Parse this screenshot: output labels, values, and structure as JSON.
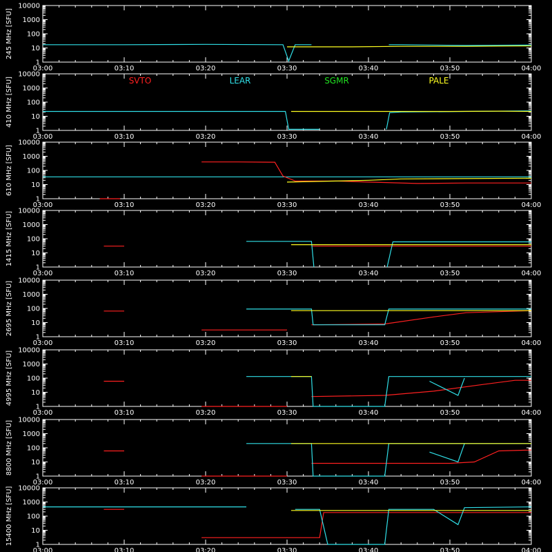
{
  "colors": {
    "background": "#000000",
    "axes": "#ffffff",
    "SVTO": "#ff2020",
    "LEAR": "#30e0e8",
    "SGMR": "#20e020",
    "PALE": "#ffff20"
  },
  "legend": {
    "placement": "top",
    "entries": [
      "SVTO",
      "LEAR",
      "SGMR",
      "PALE"
    ]
  },
  "chart_data": [
    {
      "type": "line",
      "log_y": true,
      "ylabel": "245 MHz [SFU]",
      "ylim": [
        1,
        10000
      ],
      "xlim": [
        "03:00",
        "04:00"
      ],
      "x_ticks": [
        "03:00",
        "03:10",
        "03:20",
        "03:30",
        "03:40",
        "03:50",
        "04:00"
      ],
      "y_ticks": [
        "1",
        "10",
        "100",
        "1000",
        "10000"
      ],
      "series": [
        {
          "name": "LEAR",
          "points": [
            [
              0,
              17
            ],
            [
              10,
              17
            ],
            [
              20,
              18
            ],
            [
              29.5,
              17
            ],
            [
              30.2,
              1.2
            ],
            [
              31,
              17
            ],
            [
              33,
              17
            ]
          ]
        },
        {
          "name": "LEAR",
          "points": [
            [
              42.5,
              17
            ],
            [
              44,
              17
            ],
            [
              52,
              15
            ],
            [
              60,
              16
            ]
          ]
        },
        {
          "name": "PALE",
          "points": [
            [
              30,
              12
            ],
            [
              38,
              12
            ],
            [
              44,
              13
            ],
            [
              52,
              13
            ],
            [
              60,
              14
            ]
          ]
        }
      ]
    },
    {
      "type": "line",
      "log_y": true,
      "ylabel": "410 MHz [SFU]",
      "ylim": [
        1,
        10000
      ],
      "xlim": [
        "03:00",
        "04:00"
      ],
      "x_ticks": [
        "03:00",
        "03:10",
        "03:20",
        "03:30",
        "03:40",
        "03:50",
        "04:00"
      ],
      "y_ticks": [
        "1",
        "10",
        "100",
        "1000",
        "10000"
      ],
      "series": [
        {
          "name": "LEAR",
          "points": [
            [
              0,
              22
            ],
            [
              10,
              22
            ],
            [
              20,
              22
            ],
            [
              29.8,
              22
            ],
            [
              30.2,
              1.2
            ],
            [
              34,
              1.2
            ]
          ]
        },
        {
          "name": "LEAR",
          "points": [
            [
              42.2,
              1.2
            ],
            [
              42.6,
              18
            ],
            [
              44,
              20
            ],
            [
              52,
              22
            ],
            [
              60,
              24
            ]
          ]
        },
        {
          "name": "PALE",
          "points": [
            [
              30.5,
              22
            ],
            [
              40,
              22
            ],
            [
              50,
              22
            ],
            [
              56,
              23
            ],
            [
              60,
              22
            ]
          ]
        }
      ]
    },
    {
      "type": "line",
      "log_y": true,
      "ylabel": "610 MHz [SFU]",
      "ylim": [
        1,
        10000
      ],
      "xlim": [
        "03:00",
        "04:00"
      ],
      "x_ticks": [
        "03:00",
        "03:10",
        "03:20",
        "03:30",
        "03:40",
        "03:50",
        "04:00"
      ],
      "y_ticks": [
        "1",
        "10",
        "100",
        "1000",
        "10000"
      ],
      "series": [
        {
          "name": "LEAR",
          "points": [
            [
              0,
              35
            ],
            [
              10,
              35
            ],
            [
              20,
              35
            ],
            [
              30,
              35
            ],
            [
              40,
              35
            ],
            [
              50,
              35
            ],
            [
              60,
              35
            ]
          ]
        },
        {
          "name": "SVTO",
          "points": [
            [
              7,
              1
            ],
            [
              9.5,
              1
            ]
          ]
        },
        {
          "name": "SVTO",
          "points": [
            [
              19.5,
              400
            ],
            [
              24,
              400
            ],
            [
              28.5,
              380
            ],
            [
              29.5,
              40
            ],
            [
              31,
              18
            ],
            [
              36,
              18
            ],
            [
              40,
              15
            ],
            [
              46,
              12
            ],
            [
              52,
              13
            ],
            [
              60,
              13
            ]
          ]
        },
        {
          "name": "PALE",
          "points": [
            [
              30,
              15
            ],
            [
              40,
              20
            ],
            [
              44,
              25
            ],
            [
              60,
              28
            ]
          ]
        }
      ]
    },
    {
      "type": "line",
      "log_y": true,
      "ylabel": "1415 MHz [SFU]",
      "ylim": [
        1,
        10000
      ],
      "xlim": [
        "03:00",
        "04:00"
      ],
      "x_ticks": [
        "03:00",
        "03:10",
        "03:20",
        "03:30",
        "03:40",
        "03:50",
        "04:00"
      ],
      "y_ticks": [
        "1",
        "10",
        "100",
        "1000",
        "10000"
      ],
      "series": [
        {
          "name": "SVTO",
          "points": [
            [
              7.5,
              30
            ],
            [
              10,
              30
            ]
          ]
        },
        {
          "name": "SVTO",
          "points": [
            [
              33,
              30
            ],
            [
              40,
              30
            ],
            [
              50,
              30
            ],
            [
              60,
              30
            ]
          ]
        },
        {
          "name": "LEAR",
          "points": [
            [
              25,
              65
            ],
            [
              33,
              65
            ],
            [
              33.3,
              1
            ]
          ]
        },
        {
          "name": "LEAR",
          "points": [
            [
              42.3,
              1
            ],
            [
              43,
              60
            ],
            [
              48,
              60
            ],
            [
              60,
              60
            ]
          ]
        },
        {
          "name": "PALE",
          "points": [
            [
              30.5,
              38
            ],
            [
              40,
              38
            ],
            [
              50,
              38
            ],
            [
              60,
              38
            ]
          ]
        }
      ]
    },
    {
      "type": "line",
      "log_y": true,
      "ylabel": "2695 MHz [SFU]",
      "ylim": [
        1,
        10000
      ],
      "xlim": [
        "03:00",
        "04:00"
      ],
      "x_ticks": [
        "03:00",
        "03:10",
        "03:20",
        "03:30",
        "03:40",
        "03:50",
        "04:00"
      ],
      "y_ticks": [
        "1",
        "10",
        "100",
        "1000",
        "10000"
      ],
      "series": [
        {
          "name": "SVTO",
          "points": [
            [
              7.5,
              65
            ],
            [
              10,
              65
            ]
          ]
        },
        {
          "name": "SVTO",
          "points": [
            [
              19.5,
              3
            ],
            [
              30,
              3
            ]
          ]
        },
        {
          "name": "SVTO",
          "points": [
            [
              33,
              7
            ],
            [
              42,
              8
            ],
            [
              48,
              25
            ],
            [
              52,
              50
            ],
            [
              60,
              70
            ]
          ]
        },
        {
          "name": "LEAR",
          "points": [
            [
              25,
              90
            ],
            [
              33,
              90
            ],
            [
              33.2,
              7
            ],
            [
              42,
              7
            ],
            [
              42.5,
              90
            ],
            [
              52,
              90
            ],
            [
              60,
              90
            ]
          ]
        },
        {
          "name": "PALE",
          "points": [
            [
              30.5,
              70
            ],
            [
              40,
              70
            ],
            [
              50,
              70
            ],
            [
              60,
              70
            ]
          ]
        }
      ]
    },
    {
      "type": "line",
      "log_y": true,
      "ylabel": "4995 MHz [SFU]",
      "ylim": [
        1,
        10000
      ],
      "xlim": [
        "03:00",
        "04:00"
      ],
      "x_ticks": [
        "03:00",
        "03:10",
        "03:20",
        "03:30",
        "03:40",
        "03:50",
        "04:00"
      ],
      "y_ticks": [
        "1",
        "10",
        "100",
        "1000",
        "10000"
      ],
      "series": [
        {
          "name": "SVTO",
          "points": [
            [
              7.5,
              60
            ],
            [
              10,
              60
            ]
          ]
        },
        {
          "name": "SVTO",
          "points": [
            [
              19.5,
              1
            ],
            [
              30,
              1
            ]
          ]
        },
        {
          "name": "SVTO",
          "points": [
            [
              33,
              5
            ],
            [
              42,
              6
            ],
            [
              48,
              12
            ],
            [
              54,
              35
            ],
            [
              58,
              70
            ],
            [
              60,
              70
            ]
          ]
        },
        {
          "name": "LEAR",
          "points": [
            [
              25,
              130
            ],
            [
              33,
              130
            ],
            [
              33.2,
              1
            ],
            [
              42,
              1
            ],
            [
              42.5,
              130
            ],
            [
              60,
              130
            ]
          ]
        },
        {
          "name": "LEAR",
          "points": [
            [
              47.5,
              60
            ],
            [
              51,
              6
            ],
            [
              51.8,
              100
            ]
          ]
        },
        {
          "name": "PALE",
          "points": [
            [
              30.5,
              130
            ],
            [
              33,
              130
            ]
          ]
        }
      ]
    },
    {
      "type": "line",
      "log_y": true,
      "ylabel": "8800 MHz [SFU]",
      "ylim": [
        1,
        10000
      ],
      "xlim": [
        "03:00",
        "04:00"
      ],
      "x_ticks": [
        "03:00",
        "03:10",
        "03:20",
        "03:30",
        "03:40",
        "03:50",
        "04:00"
      ],
      "y_ticks": [
        "1",
        "10",
        "100",
        "1000",
        "10000"
      ],
      "series": [
        {
          "name": "SVTO",
          "points": [
            [
              7.5,
              60
            ],
            [
              10,
              60
            ]
          ]
        },
        {
          "name": "SVTO",
          "points": [
            [
              19.5,
              1
            ],
            [
              30,
              1
            ]
          ]
        },
        {
          "name": "SVTO",
          "points": [
            [
              33,
              8
            ],
            [
              42,
              8
            ],
            [
              50,
              8
            ],
            [
              53,
              10
            ],
            [
              56,
              60
            ],
            [
              60,
              70
            ]
          ]
        },
        {
          "name": "LEAR",
          "points": [
            [
              25,
              200
            ],
            [
              33,
              200
            ],
            [
              33.2,
              1
            ],
            [
              42,
              1
            ],
            [
              42.5,
              200
            ],
            [
              60,
              200
            ]
          ]
        },
        {
          "name": "LEAR",
          "points": [
            [
              47.5,
              50
            ],
            [
              51,
              10
            ],
            [
              51.8,
              200
            ]
          ]
        },
        {
          "name": "PALE",
          "points": [
            [
              30.5,
              200
            ],
            [
              40,
              200
            ],
            [
              50,
              200
            ],
            [
              60,
              200
            ]
          ]
        }
      ]
    },
    {
      "type": "line",
      "log_y": true,
      "ylabel": "15400 MHz [SFU]",
      "ylim": [
        1,
        10000
      ],
      "xlim": [
        "03:00",
        "04:00"
      ],
      "x_ticks": [
        "03:00",
        "03:10",
        "03:20",
        "03:30",
        "03:40",
        "03:50",
        "04:00"
      ],
      "y_ticks": [
        "1",
        "10",
        "100",
        "1000",
        "10000"
      ],
      "series": [
        {
          "name": "SVTO",
          "points": [
            [
              7.5,
              300
            ],
            [
              10,
              300
            ]
          ]
        },
        {
          "name": "SVTO",
          "points": [
            [
              19.5,
              3
            ],
            [
              34,
              3
            ],
            [
              34.5,
              180
            ],
            [
              60,
              180
            ]
          ]
        },
        {
          "name": "LEAR",
          "points": [
            [
              0,
              450
            ],
            [
              25,
              450
            ]
          ]
        },
        {
          "name": "LEAR",
          "points": [
            [
              31,
              300
            ],
            [
              34,
              300
            ],
            [
              35,
              1
            ],
            [
              42,
              1
            ],
            [
              42.5,
              300
            ],
            [
              48,
              300
            ],
            [
              51,
              25
            ],
            [
              51.8,
              400
            ],
            [
              60,
              450
            ]
          ]
        },
        {
          "name": "PALE",
          "points": [
            [
              30.5,
              250
            ],
            [
              40,
              250
            ],
            [
              50,
              250
            ],
            [
              60,
              250
            ]
          ]
        }
      ]
    }
  ]
}
